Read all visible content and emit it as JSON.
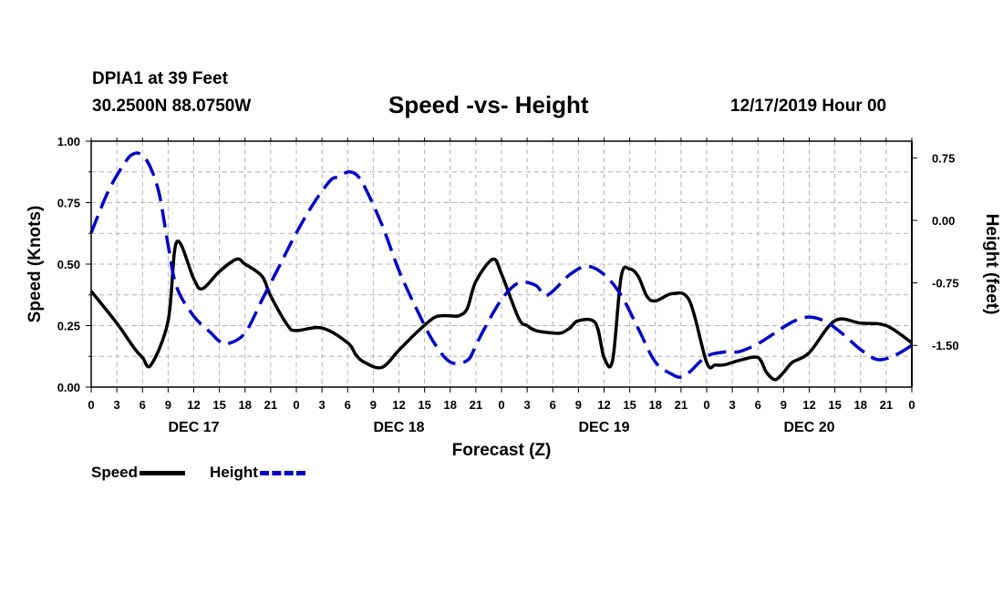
{
  "header": {
    "station": "DPIA1 at 39 Feet",
    "coords": "30.2500N 88.0750W",
    "title": "Speed -vs- Height",
    "date_hour": "12/17/2019 Hour 00"
  },
  "legend": {
    "speed_label": "Speed",
    "height_label": "Height"
  },
  "colors": {
    "speed": "#000000",
    "height": "#0000c8",
    "grid": "#b4b4b4"
  },
  "chart_data": {
    "type": "line",
    "title": "Speed -vs- Height",
    "xlabel": "Forecast (Z)",
    "ylabel": "Speed (Knots)",
    "y2label": "Height (feet)",
    "xlim": [
      0,
      96
    ],
    "ylim": [
      0,
      1.0
    ],
    "y2lim": [
      -2.0,
      0.95
    ],
    "x_tick_labels": [
      "0",
      "3",
      "6",
      "9",
      "12",
      "15",
      "18",
      "21",
      "0",
      "3",
      "6",
      "9",
      "12",
      "15",
      "18",
      "21",
      "0",
      "3",
      "6",
      "9",
      "12",
      "15",
      "18",
      "21",
      "0",
      "3",
      "6",
      "9",
      "12",
      "15",
      "18",
      "21",
      "0"
    ],
    "day_labels": [
      {
        "label": "DEC 17",
        "x": 12
      },
      {
        "label": "DEC 18",
        "x": 36
      },
      {
        "label": "DEC 19",
        "x": 60
      },
      {
        "label": "DEC 20",
        "x": 84
      }
    ],
    "y_ticks": [
      0,
      0.25,
      0.5,
      0.75,
      1.0
    ],
    "y_tick_labels": [
      "0.00",
      "0.25",
      "0.50",
      "0.75",
      "1.00"
    ],
    "y2_ticks": [
      0.75,
      0,
      -0.75,
      -1.5
    ],
    "y2_tick_labels": [
      "0.75",
      "0.00",
      "-0.75",
      "-1.50"
    ],
    "grid": true,
    "series": [
      {
        "name": "Speed",
        "axis": "left",
        "x": [
          0,
          3,
          5,
          6,
          7,
          9,
          10,
          12,
          13,
          15,
          17,
          18,
          20,
          21,
          23,
          24,
          27,
          30,
          31,
          32,
          34,
          36,
          38,
          40,
          41,
          42,
          43,
          44,
          45,
          47,
          48,
          50,
          51,
          52,
          54,
          55,
          56,
          57,
          59,
          60,
          61,
          62,
          63,
          64,
          65,
          66,
          68,
          70,
          72,
          73,
          74,
          75,
          76,
          78,
          79,
          80,
          81,
          82,
          84,
          87,
          90,
          93,
          96
        ],
        "values": [
          0.39,
          0.26,
          0.16,
          0.12,
          0.09,
          0.27,
          0.59,
          0.44,
          0.4,
          0.47,
          0.52,
          0.5,
          0.45,
          0.37,
          0.25,
          0.23,
          0.24,
          0.18,
          0.13,
          0.1,
          0.08,
          0.15,
          0.22,
          0.28,
          0.29,
          0.29,
          0.29,
          0.32,
          0.43,
          0.52,
          0.46,
          0.28,
          0.25,
          0.23,
          0.22,
          0.22,
          0.24,
          0.27,
          0.26,
          0.12,
          0.11,
          0.45,
          0.48,
          0.45,
          0.37,
          0.35,
          0.38,
          0.35,
          0.1,
          0.09,
          0.09,
          0.1,
          0.11,
          0.12,
          0.06,
          0.03,
          0.06,
          0.1,
          0.14,
          0.27,
          0.26,
          0.25,
          0.18
        ]
      },
      {
        "name": "Height",
        "axis": "right",
        "x": [
          0,
          2,
          4,
          5,
          6,
          7,
          8,
          9,
          10,
          12,
          14,
          15,
          16,
          18,
          20,
          22,
          24,
          26,
          28,
          29,
          30,
          31,
          32,
          34,
          36,
          38,
          40,
          42,
          44,
          45,
          46,
          48,
          50,
          52,
          53,
          54,
          56,
          58,
          60,
          62,
          64,
          66,
          68,
          69,
          70,
          72,
          74,
          75,
          76,
          78,
          80,
          82,
          84,
          86,
          88,
          90,
          92,
          94,
          96
        ],
        "values": [
          -0.15,
          0.35,
          0.7,
          0.8,
          0.78,
          0.62,
          0.3,
          -0.3,
          -0.8,
          -1.15,
          -1.35,
          -1.45,
          -1.48,
          -1.35,
          -0.95,
          -0.55,
          -0.15,
          0.2,
          0.48,
          0.52,
          0.58,
          0.55,
          0.4,
          -0.05,
          -0.6,
          -1.05,
          -1.45,
          -1.7,
          -1.68,
          -1.5,
          -1.3,
          -0.95,
          -0.75,
          -0.78,
          -0.9,
          -0.85,
          -0.65,
          -0.55,
          -0.65,
          -0.9,
          -1.3,
          -1.7,
          -1.85,
          -1.88,
          -1.82,
          -1.63,
          -1.58,
          -1.58,
          -1.57,
          -1.48,
          -1.35,
          -1.22,
          -1.16,
          -1.22,
          -1.37,
          -1.55,
          -1.67,
          -1.62,
          -1.5
        ]
      }
    ]
  }
}
